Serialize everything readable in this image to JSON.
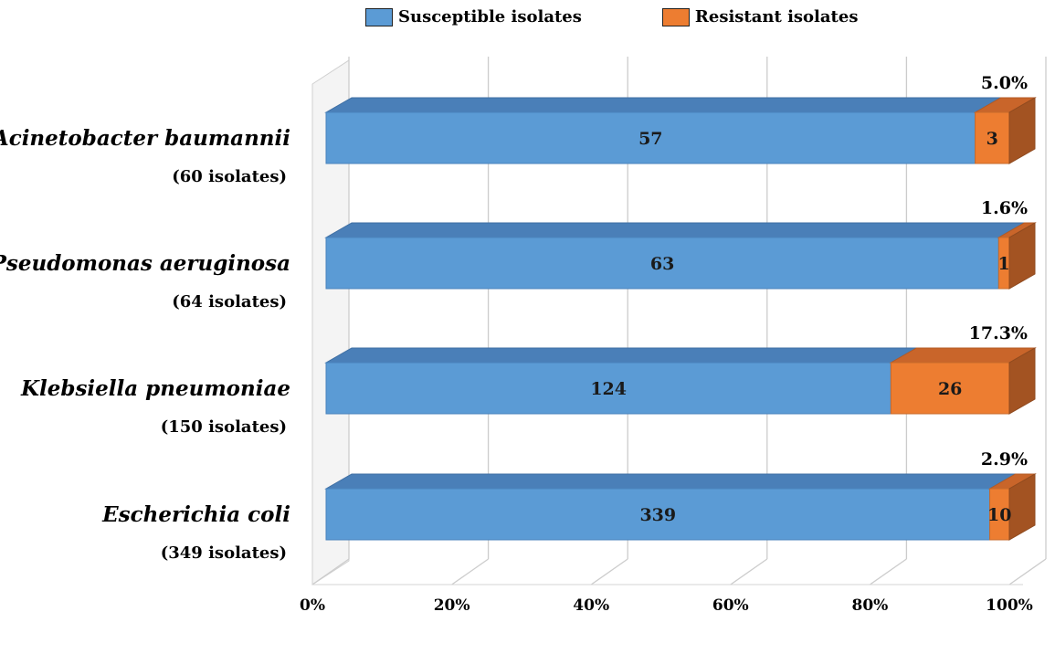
{
  "chart_data": {
    "type": "bar",
    "orientation": "horizontal",
    "stacked": "percent",
    "title": "",
    "xlabel": "",
    "ylabel": "",
    "xlim": [
      0,
      100
    ],
    "x_tick_labels": [
      "0%",
      "20%",
      "40%",
      "60%",
      "80%",
      "100%"
    ],
    "categories": [
      {
        "name": "Acinetobacter baumannii",
        "isolates": "(60 isolates)"
      },
      {
        "name": "Pseudomonas aeruginosa",
        "isolates": "(64 isolates)"
      },
      {
        "name": "Klebsiella pneumoniae",
        "isolates": "(150 isolates)"
      },
      {
        "name": "Escherichia coli",
        "isolates": "(349 isolates)"
      }
    ],
    "series": [
      {
        "name": "Susceptible isolates",
        "color": "#5b9bd5",
        "values": [
          57,
          63,
          124,
          339
        ]
      },
      {
        "name": "Resistant isolates",
        "color": "#ed7d31",
        "values": [
          3,
          1,
          26,
          10
        ]
      }
    ],
    "resistance_percent_labels": [
      "5.0%",
      "1.6%",
      "17.3%",
      "2.9%"
    ],
    "legend_position": "top",
    "grid": true,
    "style": "3d"
  }
}
